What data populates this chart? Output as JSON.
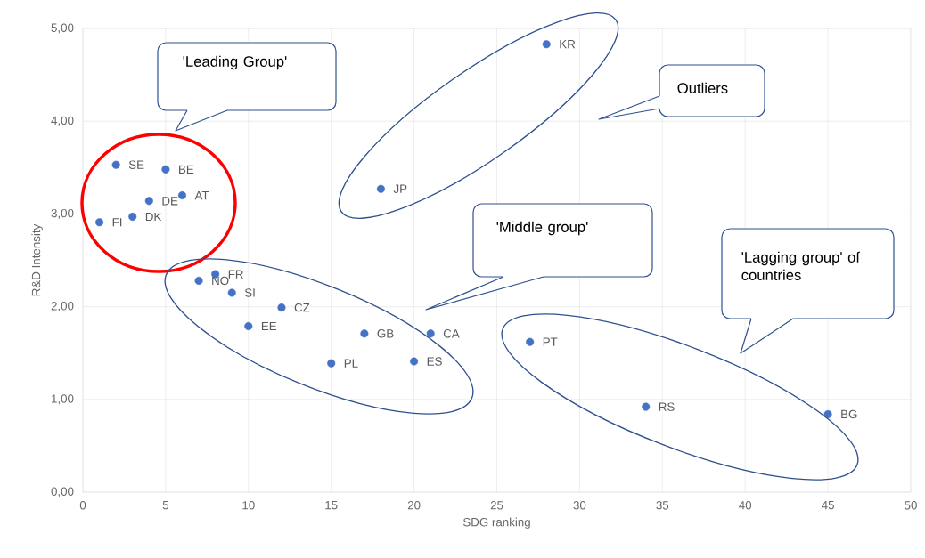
{
  "chart_data": {
    "type": "scatter",
    "xlabel": "SDG ranking",
    "ylabel": "R&D Intensity",
    "x": [
      2,
      5,
      6,
      4,
      3,
      1,
      8,
      7,
      9,
      12,
      10,
      17,
      21,
      15,
      20,
      27,
      34,
      45,
      18,
      28
    ],
    "values": [
      3.53,
      3.48,
      3.2,
      3.14,
      2.97,
      2.91,
      2.35,
      2.28,
      2.15,
      1.99,
      1.79,
      1.71,
      1.71,
      1.39,
      1.41,
      1.62,
      0.92,
      0.84,
      3.27,
      4.83
    ],
    "color": "#4472c4",
    "marker": "circle",
    "grid": true,
    "xlim": [
      0,
      50
    ],
    "ylim": [
      0,
      5
    ],
    "xticks": [
      0,
      5,
      10,
      15,
      20,
      25,
      30,
      35,
      40,
      45,
      50
    ],
    "yticks": [
      {
        "value": 0,
        "label": "0,00"
      },
      {
        "value": 1,
        "label": "1,00"
      },
      {
        "value": 2,
        "label": "2,00"
      },
      {
        "value": 3,
        "label": "3,00"
      },
      {
        "value": 4,
        "label": "4,00"
      },
      {
        "value": 5,
        "label": "5,00"
      }
    ],
    "annotations": [
      {
        "text": "SE",
        "x": 2,
        "y": 3.53
      },
      {
        "text": "BE",
        "x": 5,
        "y": 3.48
      },
      {
        "text": "AT",
        "x": 6,
        "y": 3.2
      },
      {
        "text": "DE",
        "x": 4,
        "y": 3.14
      },
      {
        "text": "DK",
        "x": 3,
        "y": 2.97
      },
      {
        "text": "FI",
        "x": 1,
        "y": 2.91
      },
      {
        "text": "FR",
        "x": 8,
        "y": 2.35
      },
      {
        "text": "NO",
        "x": 7,
        "y": 2.28
      },
      {
        "text": "SI",
        "x": 9,
        "y": 2.15
      },
      {
        "text": "CZ",
        "x": 12,
        "y": 1.99
      },
      {
        "text": "EE",
        "x": 10,
        "y": 1.79
      },
      {
        "text": "GB",
        "x": 17,
        "y": 1.71
      },
      {
        "text": "CA",
        "x": 21,
        "y": 1.71
      },
      {
        "text": "PL",
        "x": 15,
        "y": 1.39
      },
      {
        "text": "ES",
        "x": 20,
        "y": 1.41
      },
      {
        "text": "PT",
        "x": 27,
        "y": 1.62
      },
      {
        "text": "RS",
        "x": 34,
        "y": 0.92
      },
      {
        "text": "BG",
        "x": 45,
        "y": 0.84
      },
      {
        "text": "JP",
        "x": 18,
        "y": 3.27
      },
      {
        "text": "KR",
        "x": 28,
        "y": 4.83
      },
      "'Leading Group'",
      "Outliers",
      "'Middle group'",
      "'Lagging group' of countries"
    ]
  }
}
